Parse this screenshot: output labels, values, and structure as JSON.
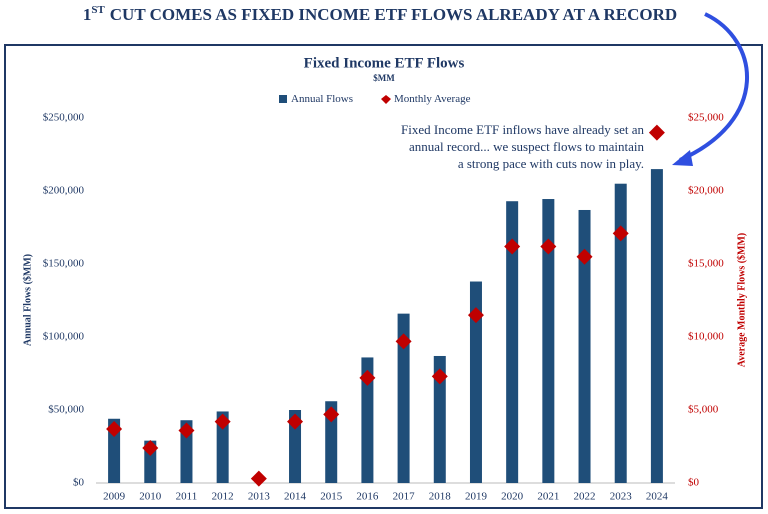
{
  "chart_data": {
    "type": "bar_diamond",
    "headline": {
      "number": "1",
      "ordinal": "ST",
      "text": "CUT COMES AS FIXED INCOME ETF FLOWS ALREADY AT A RECORD"
    },
    "title": "Fixed Income ETF Flows",
    "subtitle": "$MM",
    "y_label": "Annual Flows ($MM)",
    "y2_label": "Average Monthly Flows ($MM)",
    "annotation": [
      "Fixed Income ETF inflows have already set an",
      "annual record... we suspect flows to maintain",
      "a strong pace with cuts now in play."
    ],
    "categories": [
      "2009",
      "2010",
      "2011",
      "2012",
      "2013",
      "2014",
      "2015",
      "2016",
      "2017",
      "2018",
      "2019",
      "2020",
      "2021",
      "2022",
      "2023",
      "2024"
    ],
    "series": [
      {
        "name": "Annual Flows",
        "color": "#1f4e79",
        "kind": "bar",
        "values": [
          44000,
          29000,
          43000,
          49000,
          0,
          50000,
          56000,
          86000,
          116000,
          87000,
          138000,
          193000,
          194500,
          187000,
          205000,
          215000
        ]
      },
      {
        "name": "Monthly Average",
        "color": "#c00000",
        "kind": "diamond",
        "axis": "y2",
        "values": [
          3700,
          2400,
          3600,
          4200,
          300,
          4200,
          4700,
          7200,
          9700,
          7300,
          11500,
          16200,
          16200,
          15500,
          17100,
          24000
        ]
      }
    ],
    "ylim": [
      0,
      250000
    ],
    "yticks": [
      {
        "value": 0,
        "label": "$0"
      },
      {
        "value": 50000,
        "label": "$50,000"
      },
      {
        "value": 100000,
        "label": "$100,000"
      },
      {
        "value": 150000,
        "label": "$150,000"
      },
      {
        "value": 200000,
        "label": "$200,000"
      },
      {
        "value": 250000,
        "label": "$250,000"
      }
    ],
    "y2lim": [
      0,
      25000
    ],
    "y2ticks": [
      {
        "value": 0,
        "label": "$0"
      },
      {
        "value": 5000,
        "label": "$5,000"
      },
      {
        "value": 10000,
        "label": "$10,000"
      },
      {
        "value": 15000,
        "label": "$15,000"
      },
      {
        "value": 20000,
        "label": "$20,000"
      },
      {
        "value": 25000,
        "label": "$25,000"
      }
    ],
    "y_color": "#1f3864",
    "y2_color": "#c00000",
    "legend": "top"
  }
}
